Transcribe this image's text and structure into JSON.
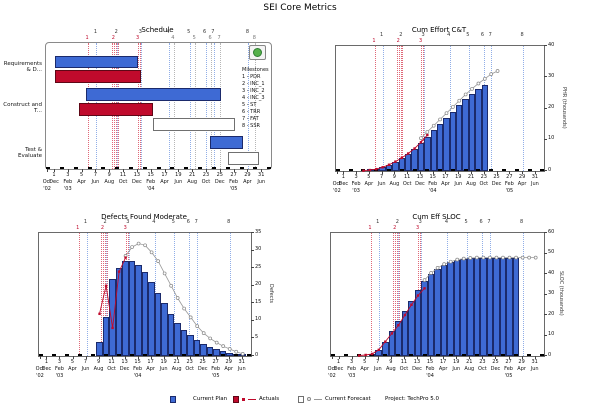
{
  "title": "SEI Core Metrics",
  "colors": {
    "plan": "#3E6AD4",
    "plan_border": "#1B2A6B",
    "actual": "#C00A2C",
    "actual_border": "#5E0716",
    "forecast_fill": "#FFFFFF",
    "forecast_border": "#707070",
    "forecast_line": "#999999",
    "plan_milestone_line": "#90AEE8",
    "actual_milestone_line": "#E06878",
    "milestone_button_green": "#55B04A"
  },
  "axis": {
    "ticks": [
      {
        "m": 0,
        "n": "",
        "mo": "Oct",
        "yr": "'02"
      },
      {
        "m": 1,
        "n": "1",
        "mo": "Dec",
        "yr": ""
      },
      {
        "m": 3,
        "n": "3",
        "mo": "Feb",
        "yr": "'03"
      },
      {
        "m": 5,
        "n": "5",
        "mo": "Apr",
        "yr": ""
      },
      {
        "m": 7,
        "n": "7",
        "mo": "Jun",
        "yr": ""
      },
      {
        "m": 9,
        "n": "9",
        "mo": "Aug",
        "yr": ""
      },
      {
        "m": 11,
        "n": "11",
        "mo": "Oct",
        "yr": ""
      },
      {
        "m": 13,
        "n": "13",
        "mo": "Dec",
        "yr": ""
      },
      {
        "m": 15,
        "n": "15",
        "mo": "Feb",
        "yr": "'04"
      },
      {
        "m": 17,
        "n": "17",
        "mo": "Apr",
        "yr": ""
      },
      {
        "m": 19,
        "n": "19",
        "mo": "Jun",
        "yr": ""
      },
      {
        "m": 21,
        "n": "21",
        "mo": "Aug",
        "yr": ""
      },
      {
        "m": 23,
        "n": "23",
        "mo": "Oct",
        "yr": ""
      },
      {
        "m": 25,
        "n": "25",
        "mo": "Dec",
        "yr": ""
      },
      {
        "m": 27,
        "n": "27",
        "mo": "Feb",
        "yr": "'05"
      },
      {
        "m": 29,
        "n": "29",
        "mo": "Apr",
        "yr": ""
      },
      {
        "m": 31,
        "n": "31",
        "mo": "Jun",
        "yr": ""
      }
    ]
  },
  "milestones": {
    "legend_title": "Milestones",
    "items": [
      "1 - PDR",
      "2 - INC_1",
      "3 - INC_2",
      "4 - INC_3",
      "5 - ST",
      "6 - TRR",
      "7 - FAT",
      "8 - SSR"
    ],
    "plan_months": [
      7,
      10,
      13.5,
      17.5,
      20.5,
      22.8,
      24,
      29
    ],
    "actual_months": [
      5.8,
      9.6,
      13.1
    ],
    "forecast_months": [
      18.2,
      21.3,
      23.6,
      24.9,
      30
    ],
    "actual_line_months": [
      5.8,
      9.2,
      9.5,
      9.8,
      10.1,
      13.0,
      13.3
    ]
  },
  "chart_data": [
    {
      "type": "gantt",
      "title": "Schedule",
      "rows": [
        {
          "label": "Requirements & D...",
          "plan": [
            1,
            13
          ],
          "actual": [
            1,
            13.5
          ]
        },
        {
          "label": "Construct and T...",
          "plan": [
            5.5,
            25
          ],
          "actual": [
            4.5,
            15.2
          ],
          "forecast": [
            15.2,
            27
          ]
        },
        {
          "label": "Test & Evaluate",
          "plan": [
            23.5,
            28.2
          ],
          "forecast": [
            26,
            30.5
          ]
        }
      ]
    },
    {
      "type": "bar+line",
      "title": "Cum Effort C&T",
      "ylabel": "PHR (thousands)",
      "ylim": [
        0,
        40
      ],
      "yticks": [
        0,
        10,
        20,
        30,
        40
      ],
      "bars": {
        "start_month": 5,
        "values": [
          0.3,
          0.6,
          1.2,
          2,
          3,
          4.2,
          5.6,
          7.2,
          9,
          11,
          13,
          15,
          17,
          19,
          21,
          23,
          24.8,
          26.2,
          27.5
        ]
      },
      "actuals": {
        "start_month": 4,
        "values": [
          0.1,
          0.3,
          0.6,
          1.2,
          2,
          3,
          4.2,
          5.6,
          7.2,
          9.2,
          11.5
        ]
      },
      "forecast": {
        "start_month": 13,
        "values": [
          10.5,
          12.5,
          14.5,
          16.5,
          18.5,
          20.5,
          22.5,
          24.5,
          26.3,
          28,
          29.5,
          31,
          32
        ]
      }
    },
    {
      "type": "bar+line",
      "title": "Defects Found Moderate",
      "ylabel": "Defects",
      "ylim": [
        0,
        35
      ],
      "yticks": [
        0,
        5,
        10,
        15,
        20,
        25,
        30,
        35
      ],
      "bars": {
        "start_month": 9,
        "values": [
          4,
          11,
          22,
          25,
          27,
          27,
          26,
          24,
          21,
          18,
          15,
          12,
          9.5,
          7.5,
          6,
          4.5,
          3.5,
          2.5,
          2,
          1.5,
          1,
          0.7,
          0.4
        ]
      },
      "actuals": {
        "start_month": 9,
        "values": [
          12,
          20,
          8,
          24,
          28
        ]
      },
      "forecast": {
        "start_month": 13,
        "values": [
          28.5,
          31,
          32,
          31.5,
          29.5,
          27,
          23.5,
          20,
          16.5,
          13.5,
          11,
          8.5,
          6.5,
          5,
          3.8,
          2.8,
          2,
          1.2,
          0.6
        ]
      }
    },
    {
      "type": "bar+line",
      "title": "Cum Eff SLOC",
      "ylabel": "SLOC (thousands)",
      "ylim": [
        0,
        60
      ],
      "yticks": [
        0,
        10,
        20,
        30,
        40,
        50,
        60
      ],
      "bars": {
        "start_month": 6,
        "values": [
          1,
          3,
          7,
          12,
          17,
          22,
          27,
          32,
          36.5,
          40,
          42.5,
          44.5,
          45.8,
          46.8,
          47.3,
          47.7,
          47.9,
          48,
          48,
          48,
          48,
          48,
          48
        ]
      },
      "actuals": {
        "start_month": 4,
        "values": [
          0.2,
          0.5,
          1,
          3,
          7,
          11,
          15,
          20,
          25,
          29.5,
          33
        ]
      },
      "forecast": {
        "start_month": 14,
        "values": [
          37,
          40.5,
          43,
          44.8,
          46,
          47,
          47.5,
          47.8,
          48,
          48,
          48,
          48,
          48,
          48,
          48,
          48,
          48,
          48
        ]
      }
    }
  ],
  "legend": {
    "current_plan": "Current Plan",
    "actuals": "Actuals",
    "current_forecast": "Current Forecast",
    "project": "Project: TechPro 5.0"
  }
}
